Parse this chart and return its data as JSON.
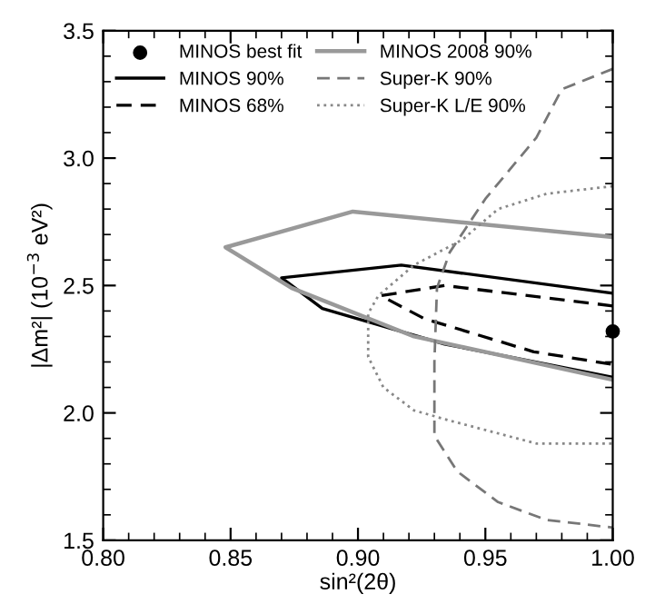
{
  "chart_data": {
    "type": "line",
    "xlabel": "sin²(2θ)",
    "ylabel": "|Δm²| (10$^{−3}$ eV²)",
    "xlim": [
      0.8,
      1.0
    ],
    "ylim": [
      1.5,
      3.5
    ],
    "xticks": [
      {
        "value": 0.8,
        "label": "0.80"
      },
      {
        "value": 0.85,
        "label": "0.85"
      },
      {
        "value": 0.9,
        "label": "0.90"
      },
      {
        "value": 0.95,
        "label": "0.95"
      },
      {
        "value": 1.0,
        "label": "1.00"
      }
    ],
    "yticks": [
      1.5,
      {
        "value": 2.0,
        "label": "2.0"
      },
      2.5,
      {
        "value": 3.0,
        "label": "3.0"
      },
      3.5
    ],
    "grid": false,
    "legend": "top left",
    "series": [
      {
        "name": "MINOS best fit",
        "type": "scatter",
        "marker": "circle",
        "color": "#000000",
        "x": [
          1.0
        ],
        "values": [
          2.32
        ]
      },
      {
        "name": "MINOS 90%",
        "color": "#000000",
        "line_style": "solid",
        "x": [
          1.0,
          0.917,
          0.87,
          0.886,
          0.934,
          1.0
        ],
        "values": [
          2.47,
          2.58,
          2.53,
          2.41,
          2.27,
          2.14
        ]
      },
      {
        "name": "MINOS 68%",
        "color": "#000000",
        "line_style": "dashed",
        "x": [
          1.0,
          0.934,
          0.909,
          0.926,
          0.969,
          1.0
        ],
        "values": [
          2.42,
          2.5,
          2.46,
          2.37,
          2.24,
          2.19
        ]
      },
      {
        "name": "MINOS 2008 90%",
        "color": "#999999",
        "line_style": "solid",
        "x": [
          1.0,
          0.898,
          0.848,
          0.874,
          0.922,
          1.0
        ],
        "values": [
          2.69,
          2.79,
          2.65,
          2.49,
          2.3,
          2.13
        ]
      },
      {
        "name": "Super-K 90%",
        "color": "#777777",
        "line_style": "dashed",
        "x": [
          1.0,
          0.98,
          0.97,
          0.95,
          0.936,
          0.931,
          0.93,
          0.93,
          0.939,
          0.955,
          0.974,
          1.0
        ],
        "values": [
          3.35,
          3.27,
          3.08,
          2.84,
          2.63,
          2.49,
          2.2,
          1.91,
          1.77,
          1.65,
          1.58,
          1.55
        ]
      },
      {
        "name": "Super-K L/E 90%",
        "color": "#888888",
        "line_style": "dotted",
        "x": [
          1.0,
          0.974,
          0.955,
          0.941,
          0.922,
          0.908,
          0.904,
          0.904,
          0.91,
          0.922,
          0.936,
          0.97,
          1.0
        ],
        "values": [
          2.89,
          2.86,
          2.8,
          2.68,
          2.58,
          2.46,
          2.39,
          2.22,
          2.1,
          2.01,
          1.97,
          1.88,
          1.88
        ]
      }
    ]
  }
}
